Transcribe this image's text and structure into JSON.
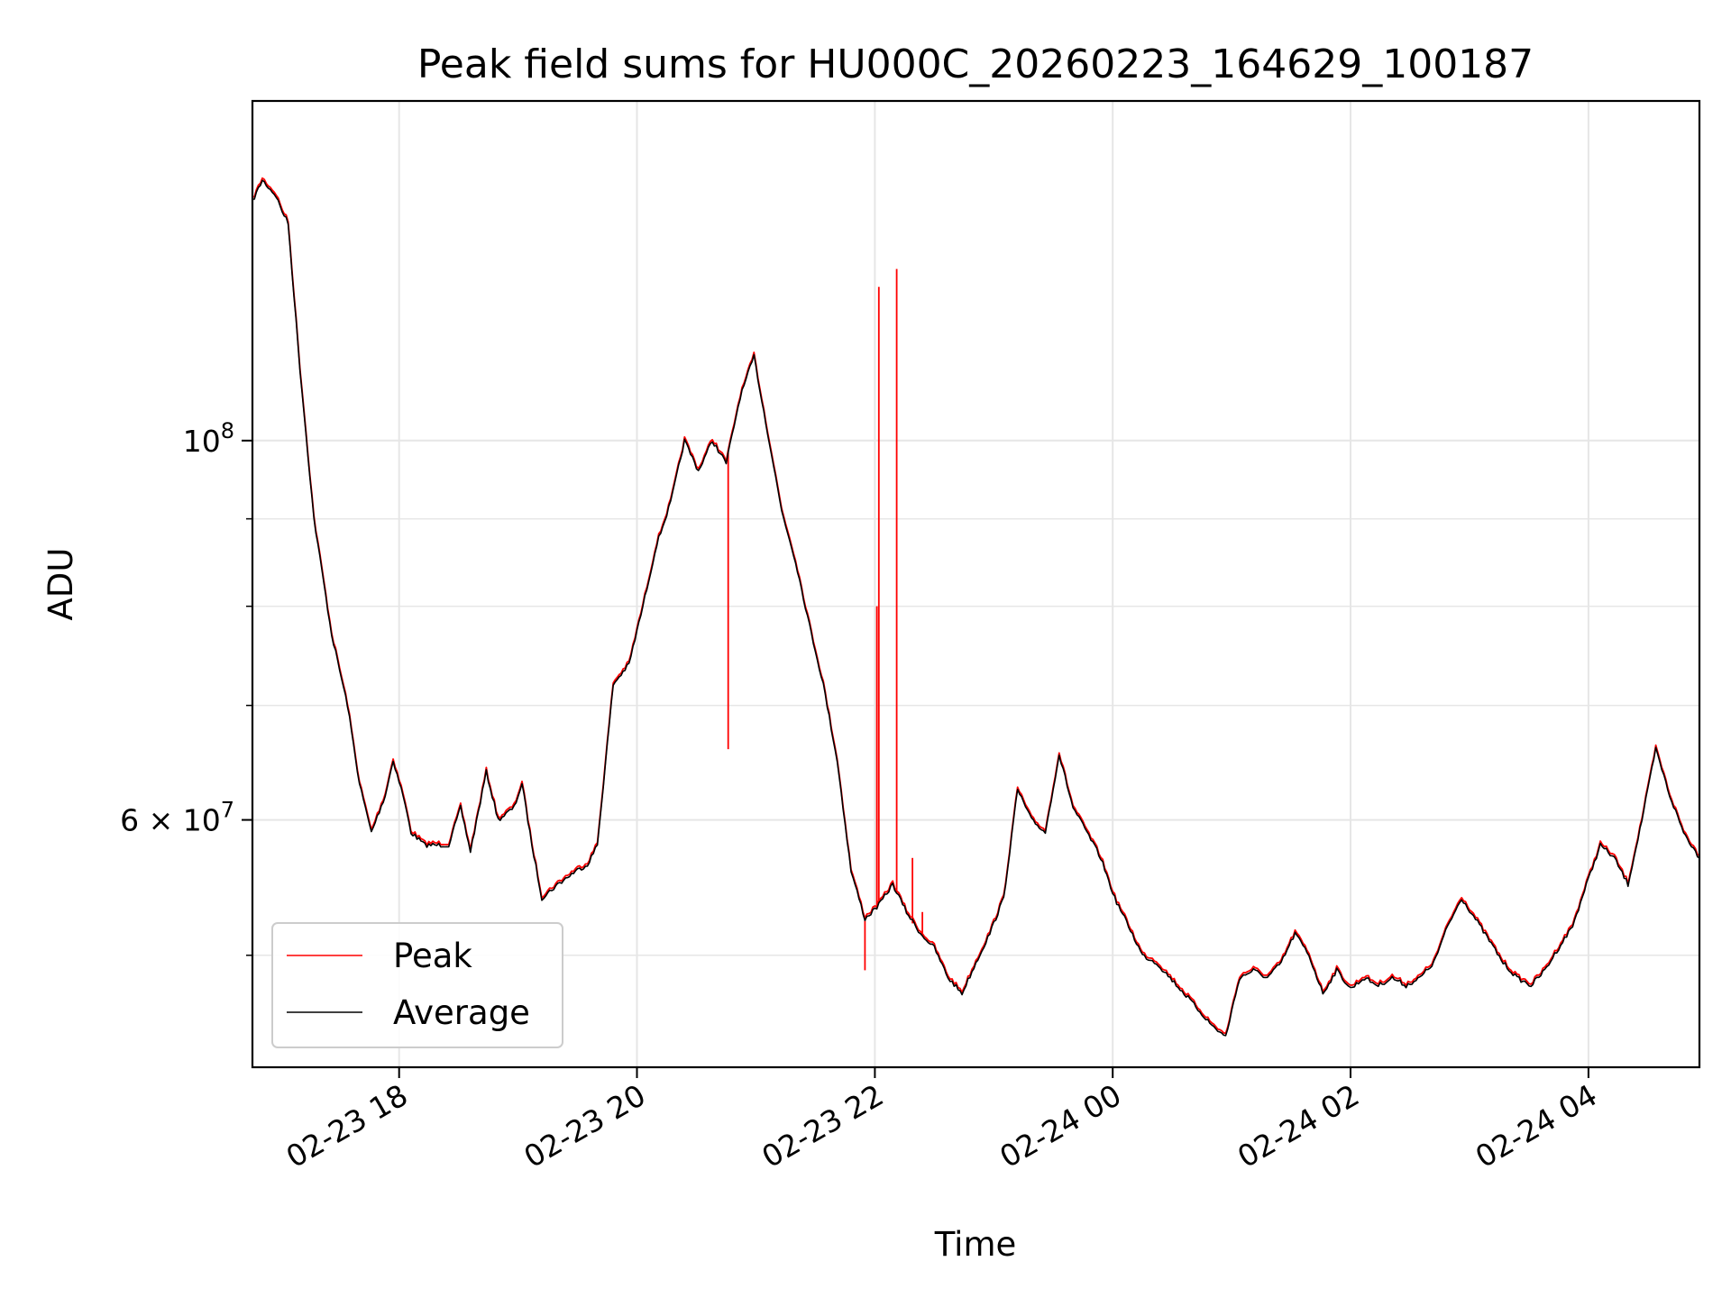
{
  "chart_data": {
    "type": "line",
    "title": "Peak field sums for HU000C_20260223_164629_100187",
    "xlabel": "Time",
    "ylabel": "ADU",
    "x_range": [
      "2026-02-23T16:46",
      "2026-02-24T04:56"
    ],
    "y_scale": "log",
    "ylim": [
      43000000,
      158000000
    ],
    "grid": true,
    "legend_position": "lower-left",
    "x_ticks": [
      {
        "t": "2026-02-23T18:00",
        "label": "02-23 18"
      },
      {
        "t": "2026-02-23T20:00",
        "label": "02-23 20"
      },
      {
        "t": "2026-02-23T22:00",
        "label": "02-23 22"
      },
      {
        "t": "2026-02-24T00:00",
        "label": "02-24 00"
      },
      {
        "t": "2026-02-24T02:00",
        "label": "02-24 02"
      },
      {
        "t": "2026-02-24T04:00",
        "label": "02-24 04"
      }
    ],
    "y_ticks_major": [
      {
        "value": 60000000,
        "base": "6 × 10",
        "exp": "7"
      },
      {
        "value": 100000000,
        "base": "10",
        "exp": "8"
      }
    ],
    "y_ticks_minor": [
      50000000,
      70000000,
      80000000,
      90000000
    ],
    "series": [
      {
        "name": "Peak",
        "color": "#ff0000",
        "spikes": [
          {
            "t": "2026-02-23T20:46",
            "value": 66000000
          },
          {
            "t": "2026-02-23T21:55",
            "value": 49000000
          },
          {
            "t": "2026-02-23T22:01",
            "value": 80000000
          },
          {
            "t": "2026-02-23T22:02",
            "value": 123000000
          },
          {
            "t": "2026-02-23T22:11",
            "value": 126000000
          },
          {
            "t": "2026-02-23T22:19",
            "value": 57000000
          },
          {
            "t": "2026-02-23T22:24",
            "value": 53000000
          }
        ]
      },
      {
        "name": "Average",
        "color": "#000000",
        "points": [
          [
            "2026-02-23T16:46",
            138000000
          ],
          [
            "2026-02-23T16:51",
            142000000
          ],
          [
            "2026-02-23T16:58",
            139000000
          ],
          [
            "2026-02-23T17:00",
            137000000
          ],
          [
            "2026-02-23T17:04",
            134000000
          ],
          [
            "2026-02-23T17:10",
            110000000
          ],
          [
            "2026-02-23T17:17",
            90000000
          ],
          [
            "2026-02-23T17:26",
            77000000
          ],
          [
            "2026-02-23T17:34",
            70000000
          ],
          [
            "2026-02-23T17:40",
            63000000
          ],
          [
            "2026-02-23T17:46",
            59000000
          ],
          [
            "2026-02-23T17:53",
            62000000
          ],
          [
            "2026-02-23T17:57",
            65000000
          ],
          [
            "2026-02-23T18:02",
            62000000
          ],
          [
            "2026-02-23T18:06",
            59000000
          ],
          [
            "2026-02-23T18:13",
            58000000
          ],
          [
            "2026-02-23T18:22",
            58000000
          ],
          [
            "2026-02-23T18:25",
            58000000
          ],
          [
            "2026-02-23T18:31",
            61000000
          ],
          [
            "2026-02-23T18:36",
            57500000
          ],
          [
            "2026-02-23T18:44",
            64000000
          ],
          [
            "2026-02-23T18:50",
            60000000
          ],
          [
            "2026-02-23T18:58",
            61000000
          ],
          [
            "2026-02-23T19:02",
            63000000
          ],
          [
            "2026-02-23T19:07",
            58000000
          ],
          [
            "2026-02-23T19:12",
            54000000
          ],
          [
            "2026-02-23T19:20",
            55000000
          ],
          [
            "2026-02-23T19:29",
            56000000
          ],
          [
            "2026-02-23T19:35",
            56500000
          ],
          [
            "2026-02-23T19:40",
            58000000
          ],
          [
            "2026-02-23T19:48",
            72000000
          ],
          [
            "2026-02-23T19:56",
            74000000
          ],
          [
            "2026-02-23T20:03",
            80000000
          ],
          [
            "2026-02-23T20:10",
            87000000
          ],
          [
            "2026-02-23T20:17",
            92000000
          ],
          [
            "2026-02-23T20:24",
            100000000
          ],
          [
            "2026-02-23T20:31",
            96000000
          ],
          [
            "2026-02-23T20:38",
            100000000
          ],
          [
            "2026-02-23T20:45",
            97000000
          ],
          [
            "2026-02-23T20:52",
            106000000
          ],
          [
            "2026-02-23T20:59",
            112000000
          ],
          [
            "2026-02-23T21:06",
            101000000
          ],
          [
            "2026-02-23T21:13",
            91000000
          ],
          [
            "2026-02-23T21:20",
            85000000
          ],
          [
            "2026-02-23T21:27",
            78000000
          ],
          [
            "2026-02-23T21:34",
            72000000
          ],
          [
            "2026-02-23T21:41",
            65000000
          ],
          [
            "2026-02-23T21:48",
            56000000
          ],
          [
            "2026-02-23T21:55",
            52500000
          ],
          [
            "2026-02-23T22:02",
            53500000
          ],
          [
            "2026-02-23T22:09",
            55000000
          ],
          [
            "2026-02-23T22:16",
            53000000
          ],
          [
            "2026-02-23T22:23",
            51500000
          ],
          [
            "2026-02-23T22:30",
            50500000
          ],
          [
            "2026-02-23T22:37",
            48500000
          ],
          [
            "2026-02-23T22:44",
            47500000
          ],
          [
            "2026-02-23T22:51",
            49500000
          ],
          [
            "2026-02-23T22:58",
            51500000
          ],
          [
            "2026-02-23T23:05",
            54000000
          ],
          [
            "2026-02-23T23:12",
            62500000
          ],
          [
            "2026-02-23T23:19",
            60000000
          ],
          [
            "2026-02-23T23:26",
            59000000
          ],
          [
            "2026-02-23T23:33",
            65500000
          ],
          [
            "2026-02-23T23:40",
            61000000
          ],
          [
            "2026-02-23T23:47",
            59000000
          ],
          [
            "2026-02-23T23:54",
            57000000
          ],
          [
            "2026-02-24T00:01",
            54000000
          ],
          [
            "2026-02-24T00:08",
            52000000
          ],
          [
            "2026-02-24T00:15",
            50000000
          ],
          [
            "2026-02-24T00:22",
            49500000
          ],
          [
            "2026-02-24T00:29",
            48500000
          ],
          [
            "2026-02-24T00:36",
            47500000
          ],
          [
            "2026-02-24T00:43",
            46500000
          ],
          [
            "2026-02-24T00:50",
            45500000
          ],
          [
            "2026-02-24T00:57",
            44800000
          ],
          [
            "2026-02-24T01:04",
            48500000
          ],
          [
            "2026-02-24T01:11",
            49000000
          ],
          [
            "2026-02-24T01:18",
            48500000
          ],
          [
            "2026-02-24T01:25",
            49500000
          ],
          [
            "2026-02-24T01:32",
            51500000
          ],
          [
            "2026-02-24T01:39",
            50000000
          ],
          [
            "2026-02-24T01:46",
            47500000
          ],
          [
            "2026-02-24T01:53",
            49000000
          ],
          [
            "2026-02-24T02:00",
            47800000
          ],
          [
            "2026-02-24T02:07",
            48500000
          ],
          [
            "2026-02-24T02:14",
            48000000
          ],
          [
            "2026-02-24T02:21",
            48500000
          ],
          [
            "2026-02-24T02:28",
            48000000
          ],
          [
            "2026-02-24T02:35",
            48500000
          ],
          [
            "2026-02-24T02:42",
            49500000
          ],
          [
            "2026-02-24T02:49",
            52000000
          ],
          [
            "2026-02-24T02:56",
            54000000
          ],
          [
            "2026-02-24T03:03",
            52500000
          ],
          [
            "2026-02-24T03:10",
            51000000
          ],
          [
            "2026-02-24T03:17",
            49500000
          ],
          [
            "2026-02-24T03:24",
            48500000
          ],
          [
            "2026-02-24T03:31",
            48000000
          ],
          [
            "2026-02-24T03:38",
            49000000
          ],
          [
            "2026-02-24T03:45",
            50500000
          ],
          [
            "2026-02-24T03:52",
            52000000
          ],
          [
            "2026-02-24T03:59",
            55000000
          ],
          [
            "2026-02-24T04:06",
            58000000
          ],
          [
            "2026-02-24T04:13",
            57000000
          ],
          [
            "2026-02-24T04:20",
            55000000
          ],
          [
            "2026-02-24T04:27",
            60000000
          ],
          [
            "2026-02-24T04:34",
            66000000
          ],
          [
            "2026-02-24T04:41",
            62000000
          ],
          [
            "2026-02-24T04:48",
            59000000
          ],
          [
            "2026-02-24T04:56",
            57000000
          ]
        ]
      }
    ]
  }
}
